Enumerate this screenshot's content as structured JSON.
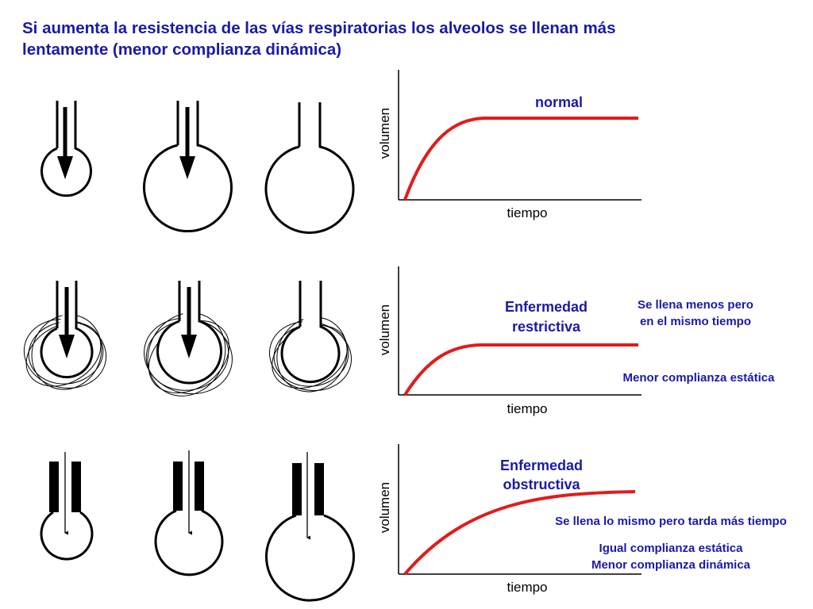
{
  "title": {
    "line1": "Si aumenta la resistencia de las vías respiratorias los alveolos se llenan más",
    "line2": "lentamente (menor complianza dinámica)"
  },
  "colors": {
    "title": "#1a1aa6",
    "annotation": "#1a1aa6",
    "curve": "#e31b1b",
    "ink": "#000000"
  },
  "rows": [
    {
      "id": "normal",
      "alveoli": [
        "small",
        "medium",
        "large"
      ],
      "airway": "normal",
      "fibrosis": false,
      "graph": {
        "ylabel": "volumen",
        "xlabel": "tiempo",
        "label": [
          "normal"
        ],
        "notes": []
      }
    },
    {
      "id": "restrictive",
      "alveoli": [
        "small",
        "medium",
        "small"
      ],
      "airway": "normal",
      "fibrosis": true,
      "graph": {
        "ylabel": "volumen",
        "xlabel": "tiempo",
        "label": [
          "Enfermedad",
          "restrictiva"
        ],
        "notes": [
          [
            "Se llena menos pero",
            "en el mismo tiempo"
          ],
          [
            "Menor complianza estática"
          ]
        ]
      }
    },
    {
      "id": "obstructive",
      "alveoli": [
        "small",
        "medium",
        "large"
      ],
      "airway": "narrowed",
      "fibrosis": false,
      "graph": {
        "ylabel": "volumen",
        "xlabel": "tiempo",
        "label": [
          "Enfermedad",
          "obstructiva"
        ],
        "notes": [
          [
            "Se llena lo mismo pero tarda más tiempo"
          ],
          [
            "Igual complianza estática",
            "Menor complianza dinámica"
          ]
        ]
      }
    }
  ]
}
